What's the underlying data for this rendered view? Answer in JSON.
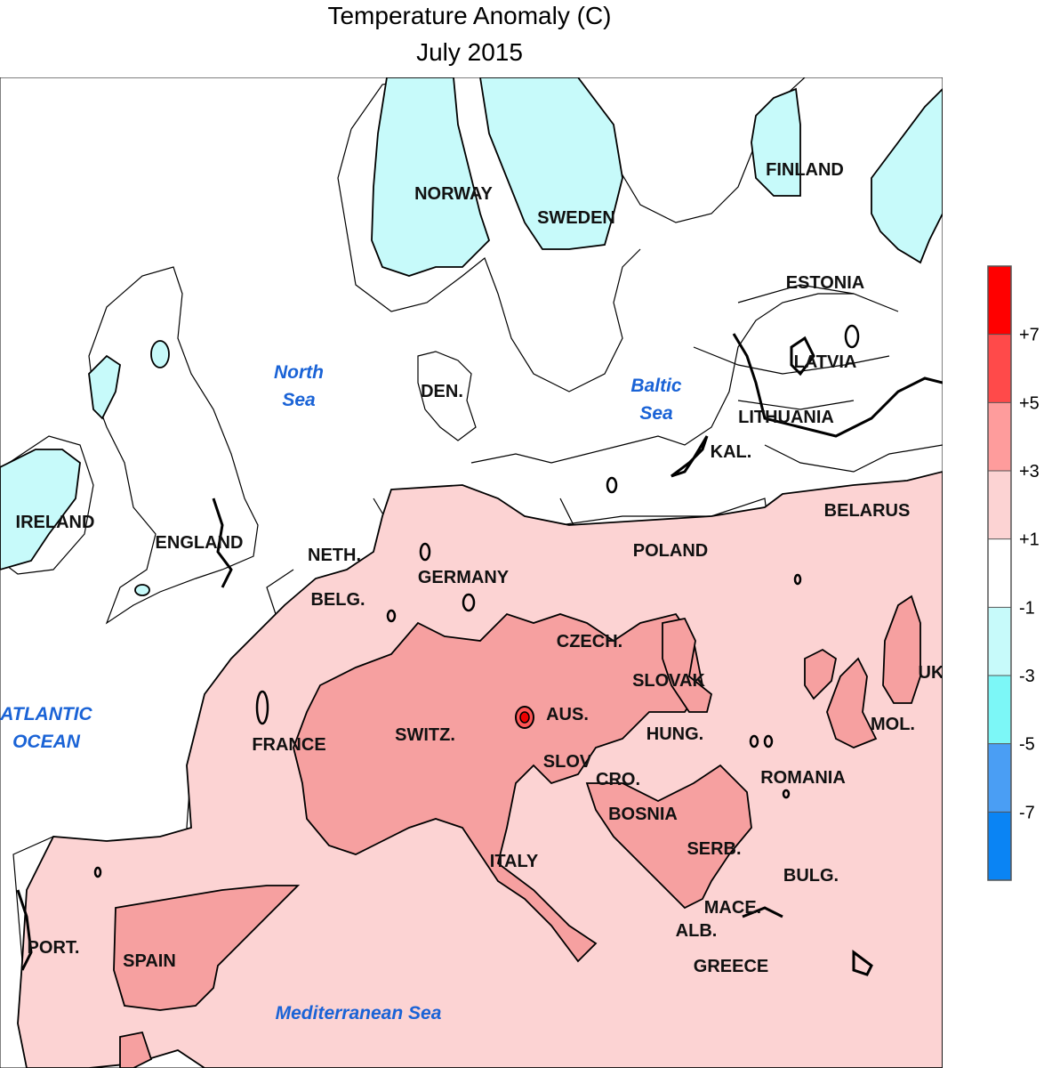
{
  "title": {
    "line1": "Temperature Anomaly (C)",
    "line2": "July 2015"
  },
  "labels": {
    "norway": "NORWAY",
    "sweden": "SWEDEN",
    "finland": "FINLAND",
    "estonia": "ESTONIA",
    "latvia": "LATVIA",
    "lithuania": "LITHUANIA",
    "kal": "KAL.",
    "belarus": "BELARUS",
    "den": "DEN.",
    "ireland": "IRELAND",
    "england": "ENGLAND",
    "neth": "NETH.",
    "belg": "BELG.",
    "germany": "GERMANY",
    "poland": "POLAND",
    "czech": "CZECH.",
    "slovak": "SLOVAK",
    "aus": "AUS.",
    "switz": "SWITZ.",
    "france": "FRANCE",
    "hung": "HUNG.",
    "slov": "SLOV",
    "cro": "CRO.",
    "romania": "ROMANIA",
    "mol": "MOL.",
    "uk": "UK",
    "bosnia": "BOSNIA",
    "serb": "SERB.",
    "italy": "ITALY",
    "bulg": "BULG.",
    "mace": "MACE.",
    "alb": "ALB.",
    "greece": "GREECE",
    "port": "PORT.",
    "spain": "SPAIN"
  },
  "seas": {
    "north_line1": "North",
    "north_line2": "Sea",
    "baltic_line1": "Baltic",
    "baltic_line2": "Sea",
    "atlantic_line1": "ATLANTIC",
    "atlantic_line2": "OCEAN",
    "mediterranean": "Mediterranean Sea"
  },
  "legend": {
    "ticks": [
      "+7",
      "+5",
      "+3",
      "+1",
      "-1",
      "-3",
      "-5",
      "-7"
    ],
    "colors": [
      "#ff0000",
      "#ff4a4a",
      "#fe9c9c",
      "#fcd3d3",
      "#ffffff",
      "#c7fafa",
      "#7cf7f7",
      "#4a9ef4",
      "#0a84f4"
    ]
  },
  "colors": {
    "anomaly_1_3": "#fcd3d3",
    "anomaly_3_5": "#f6a0a0",
    "anomaly_5_7": "#ff5555",
    "anomaly_gt7": "#ee0000",
    "anomaly_neg1_neg3": "#c7fafa",
    "sea_label": "#1a63d6"
  }
}
